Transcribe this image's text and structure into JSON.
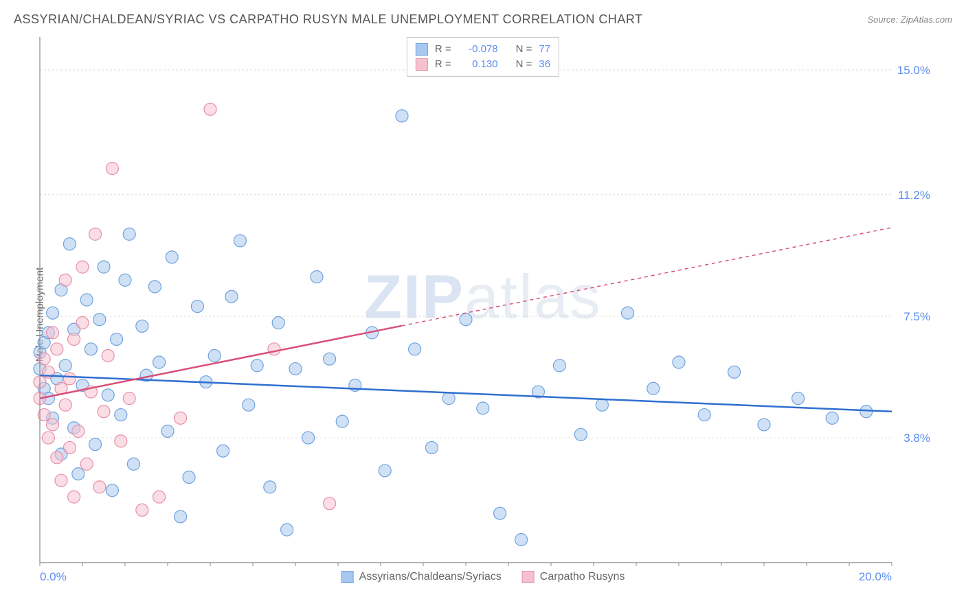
{
  "header": {
    "title": "ASSYRIAN/CHALDEAN/SYRIAC VS CARPATHO RUSYN MALE UNEMPLOYMENT CORRELATION CHART",
    "source_prefix": "Source: ",
    "source_name": "ZipAtlas.com"
  },
  "y_axis_label": "Male Unemployment",
  "watermark": {
    "part1": "ZIP",
    "part2": "atlas"
  },
  "chart": {
    "type": "scatter",
    "xlim": [
      0,
      20
    ],
    "ylim": [
      0,
      16
    ],
    "x_ticks_pct": [
      "0.0%",
      "20.0%"
    ],
    "y_ticks": [
      {
        "v": 3.8,
        "label": "3.8%"
      },
      {
        "v": 7.5,
        "label": "7.5%"
      },
      {
        "v": 11.2,
        "label": "11.2%"
      },
      {
        "v": 15.0,
        "label": "15.0%"
      }
    ],
    "background_color": "#ffffff",
    "grid_color": "#dddddd",
    "axis_color": "#888888",
    "marker_radius": 9,
    "marker_opacity": 0.55,
    "series": [
      {
        "key": "assyrian",
        "label": "Assyrians/Chaldeans/Syriacs",
        "color_fill": "#a9c8ef",
        "color_stroke": "#6fa3de",
        "r_value": "-0.078",
        "n_value": "77",
        "trend": {
          "x1": 0,
          "y1": 5.7,
          "x2": 20,
          "y2": 4.6,
          "solid_until_x": 20,
          "color": "#2f6fd0"
        },
        "points": [
          [
            0.0,
            5.9
          ],
          [
            0.0,
            6.4
          ],
          [
            0.1,
            5.3
          ],
          [
            0.1,
            6.7
          ],
          [
            0.2,
            5.0
          ],
          [
            0.2,
            7.0
          ],
          [
            0.3,
            4.4
          ],
          [
            0.3,
            7.6
          ],
          [
            0.4,
            5.6
          ],
          [
            0.5,
            8.3
          ],
          [
            0.5,
            3.3
          ],
          [
            0.6,
            6.0
          ],
          [
            0.7,
            9.7
          ],
          [
            0.8,
            4.1
          ],
          [
            0.8,
            7.1
          ],
          [
            0.9,
            2.7
          ],
          [
            1.0,
            5.4
          ],
          [
            1.1,
            8.0
          ],
          [
            1.2,
            6.5
          ],
          [
            1.3,
            3.6
          ],
          [
            1.4,
            7.4
          ],
          [
            1.5,
            9.0
          ],
          [
            1.6,
            5.1
          ],
          [
            1.7,
            2.2
          ],
          [
            1.8,
            6.8
          ],
          [
            1.9,
            4.5
          ],
          [
            2.0,
            8.6
          ],
          [
            2.1,
            10.0
          ],
          [
            2.2,
            3.0
          ],
          [
            2.4,
            7.2
          ],
          [
            2.5,
            5.7
          ],
          [
            2.7,
            8.4
          ],
          [
            2.8,
            6.1
          ],
          [
            3.0,
            4.0
          ],
          [
            3.1,
            9.3
          ],
          [
            3.3,
            1.4
          ],
          [
            3.5,
            2.6
          ],
          [
            3.7,
            7.8
          ],
          [
            3.9,
            5.5
          ],
          [
            4.1,
            6.3
          ],
          [
            4.3,
            3.4
          ],
          [
            4.5,
            8.1
          ],
          [
            4.7,
            9.8
          ],
          [
            4.9,
            4.8
          ],
          [
            5.1,
            6.0
          ],
          [
            5.4,
            2.3
          ],
          [
            5.6,
            7.3
          ],
          [
            5.8,
            1.0
          ],
          [
            6.0,
            5.9
          ],
          [
            6.3,
            3.8
          ],
          [
            6.5,
            8.7
          ],
          [
            6.8,
            6.2
          ],
          [
            7.1,
            4.3
          ],
          [
            7.4,
            5.4
          ],
          [
            7.8,
            7.0
          ],
          [
            8.1,
            2.8
          ],
          [
            8.5,
            13.6
          ],
          [
            8.8,
            6.5
          ],
          [
            9.2,
            3.5
          ],
          [
            9.6,
            5.0
          ],
          [
            10.0,
            7.4
          ],
          [
            10.4,
            4.7
          ],
          [
            10.8,
            1.5
          ],
          [
            11.3,
            0.7
          ],
          [
            11.7,
            5.2
          ],
          [
            12.2,
            6.0
          ],
          [
            12.7,
            3.9
          ],
          [
            13.2,
            4.8
          ],
          [
            13.8,
            7.6
          ],
          [
            14.4,
            5.3
          ],
          [
            15.0,
            6.1
          ],
          [
            15.6,
            4.5
          ],
          [
            16.3,
            5.8
          ],
          [
            17.0,
            4.2
          ],
          [
            17.8,
            5.0
          ],
          [
            18.6,
            4.4
          ],
          [
            19.4,
            4.6
          ]
        ]
      },
      {
        "key": "carpatho",
        "label": "Carpatho Rusyns",
        "color_fill": "#f6c1cf",
        "color_stroke": "#e88fa8",
        "r_value": "0.130",
        "n_value": "36",
        "trend": {
          "x1": 0,
          "y1": 5.0,
          "x2": 20,
          "y2": 10.2,
          "solid_until_x": 8.5,
          "color": "#d94f78"
        },
        "points": [
          [
            0.0,
            5.0
          ],
          [
            0.0,
            5.5
          ],
          [
            0.1,
            4.5
          ],
          [
            0.1,
            6.2
          ],
          [
            0.2,
            3.8
          ],
          [
            0.2,
            5.8
          ],
          [
            0.3,
            4.2
          ],
          [
            0.3,
            7.0
          ],
          [
            0.4,
            3.2
          ],
          [
            0.4,
            6.5
          ],
          [
            0.5,
            5.3
          ],
          [
            0.5,
            2.5
          ],
          [
            0.6,
            4.8
          ],
          [
            0.6,
            8.6
          ],
          [
            0.7,
            3.5
          ],
          [
            0.7,
            5.6
          ],
          [
            0.8,
            6.8
          ],
          [
            0.8,
            2.0
          ],
          [
            0.9,
            4.0
          ],
          [
            1.0,
            7.3
          ],
          [
            1.0,
            9.0
          ],
          [
            1.1,
            3.0
          ],
          [
            1.2,
            5.2
          ],
          [
            1.3,
            10.0
          ],
          [
            1.4,
            2.3
          ],
          [
            1.5,
            4.6
          ],
          [
            1.6,
            6.3
          ],
          [
            1.7,
            12.0
          ],
          [
            1.9,
            3.7
          ],
          [
            2.1,
            5.0
          ],
          [
            2.4,
            1.6
          ],
          [
            2.8,
            2.0
          ],
          [
            3.3,
            4.4
          ],
          [
            4.0,
            13.8
          ],
          [
            5.5,
            6.5
          ],
          [
            6.8,
            1.8
          ]
        ]
      }
    ]
  },
  "legend_top": {
    "r_label": "R =",
    "n_label": "N ="
  }
}
